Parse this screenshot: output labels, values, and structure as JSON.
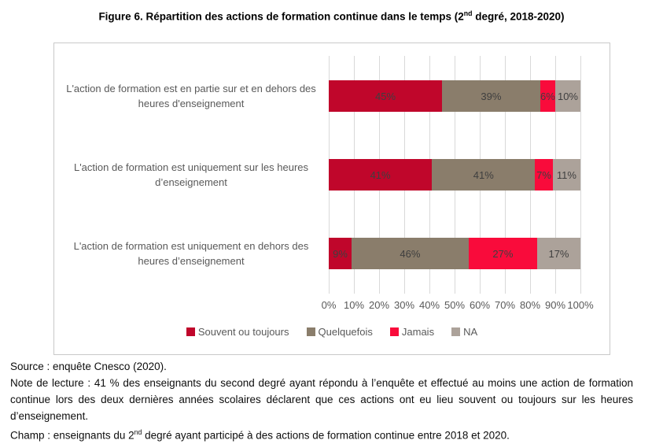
{
  "title": {
    "prefix": "Figure 6. Répartition des actions de formation continue dans le temps (2",
    "sup": "nd",
    "suffix": " degré, 2018-2020)"
  },
  "chart_data": {
    "type": "bar",
    "orientation": "horizontal",
    "stacked": true,
    "categories": [
      "L'action de formation est en partie sur et en dehors des heures d'enseignement",
      "L'action de formation est uniquement sur les heures d’enseignement",
      "L'action de formation est uniquement en dehors des heures d’enseignement"
    ],
    "series": [
      {
        "name": "Souvent ou toujours",
        "color": "#C0062B",
        "values": [
          45,
          41,
          9
        ]
      },
      {
        "name": "Quelquefois",
        "color": "#8A7D6B",
        "values": [
          39,
          41,
          46
        ]
      },
      {
        "name": "Jamais",
        "color": "#F90B3B",
        "values": [
          6,
          7,
          27
        ]
      },
      {
        "name": "NA",
        "color": "#ACA29A",
        "values": [
          10,
          11,
          17
        ]
      }
    ],
    "value_suffix": "%",
    "x_ticks": [
      "0%",
      "10%",
      "20%",
      "30%",
      "40%",
      "50%",
      "60%",
      "70%",
      "80%",
      "90%",
      "100%"
    ],
    "xlim": [
      0,
      100
    ],
    "grid": true,
    "legend_position": "bottom",
    "gridline_color": "#D9D9D9",
    "value_label_color": "#3F3F3F",
    "axis_label_color": "#595959"
  },
  "footer": {
    "source": "Source : enquête Cnesco (2020).",
    "note": "Note de lecture : 41 % des enseignants du second degré ayant répondu à l’enquête et effectué au moins une action de formation continue lors des deux dernières années scolaires déclarent que ces actions ont eu lieu souvent ou toujours sur les heures d’enseignement.",
    "champ_prefix": "Champ : enseignants du 2",
    "champ_sup": "nd",
    "champ_suffix": " degré ayant participé à des actions de formation continue entre 2018 et 2020."
  }
}
